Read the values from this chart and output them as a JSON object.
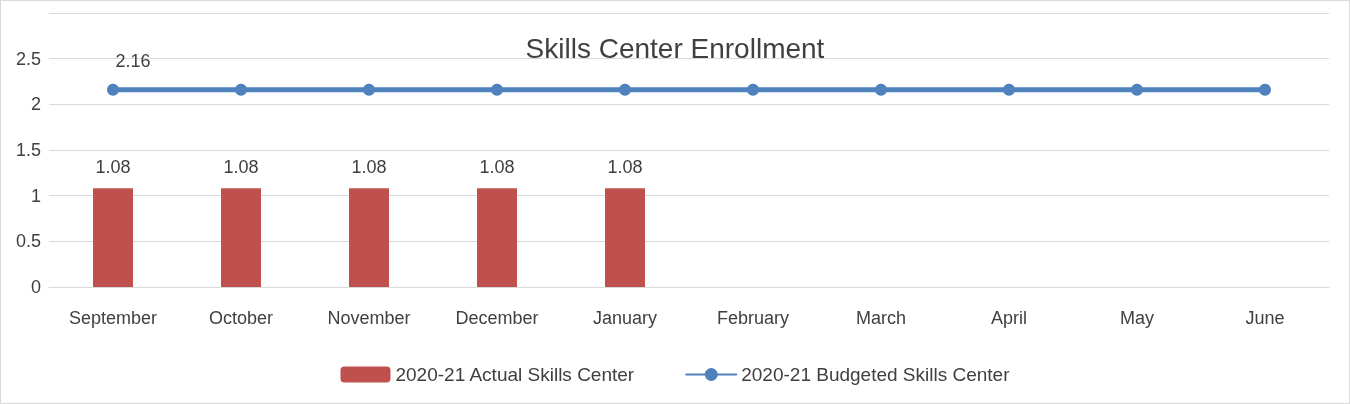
{
  "chart_data": {
    "type": "bar",
    "title": "Skills Center Enrollment",
    "categories": [
      "September",
      "October",
      "November",
      "December",
      "January",
      "February",
      "March",
      "April",
      "May",
      "June"
    ],
    "series": [
      {
        "name": "2020-21 Actual Skills Center",
        "color": "#c0504d",
        "values": [
          1.08,
          1.08,
          1.08,
          1.08,
          1.08,
          null,
          null,
          null,
          null,
          null
        ],
        "value_labels": [
          "1.08",
          "1.08",
          "1.08",
          "1.08",
          "1.08",
          null,
          null,
          null,
          null,
          null
        ]
      },
      {
        "name": "2020-21 Budgeted Skills Center",
        "type": "line",
        "color": "#4f81bd",
        "values": [
          2.16,
          2.16,
          2.16,
          2.16,
          2.16,
          2.16,
          2.16,
          2.16,
          2.16,
          2.16
        ],
        "value_labels": [
          "2.16",
          null,
          null,
          null,
          null,
          null,
          null,
          null,
          null,
          null
        ]
      }
    ],
    "ylim": [
      0,
      3
    ],
    "yticks": [
      0,
      0.5,
      1,
      1.5,
      2,
      2.5,
      {
        "value": 3,
        "label": null
      }
    ],
    "grid": "y",
    "legend": "bottom",
    "marker": "circle",
    "line_style": "solid"
  }
}
